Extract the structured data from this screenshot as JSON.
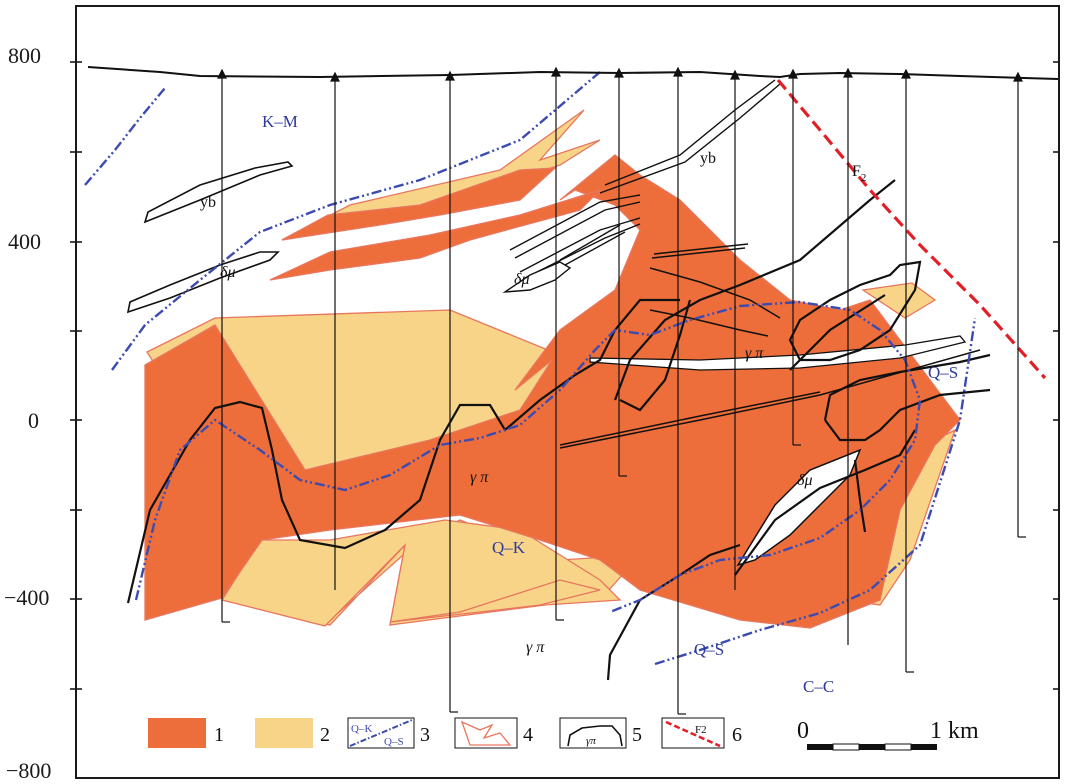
{
  "colors": {
    "ore_body": "#ee6e3b",
    "low_grade": "#f8d488",
    "alteration_line": "#3c4bb0",
    "fault": "#e21f26",
    "outline_edge": "#e8765e",
    "frame": "#1a1a1a"
  },
  "y_axis": {
    "ticks": [
      "800",
      "400",
      "0",
      "−400",
      "−800"
    ]
  },
  "zone_labels": {
    "km": "K–M",
    "qk": "Q–K",
    "qs_left": "Q–S",
    "qs_right": "Q–S",
    "cc": "C–C",
    "f2": "F",
    "f2_sub": "2"
  },
  "rock_labels": {
    "yb_upper": "yb",
    "yb_left": "yb",
    "dm_left": "δμ",
    "dm_mid": "δμ",
    "dm_low": "δμ",
    "gp_mid": "γ π",
    "gp_center": "γ π",
    "gp_bottom": "γ π"
  },
  "legend": {
    "items": [
      {
        "num": "1"
      },
      {
        "num": "2"
      },
      {
        "num": "3",
        "text_a": "Q–K",
        "text_b": "Q–S"
      },
      {
        "num": "4"
      },
      {
        "num": "5",
        "text": "γπ"
      },
      {
        "num": "6",
        "text": "F2"
      }
    ]
  },
  "scale_bar": {
    "start": "0",
    "end": "1 km"
  }
}
